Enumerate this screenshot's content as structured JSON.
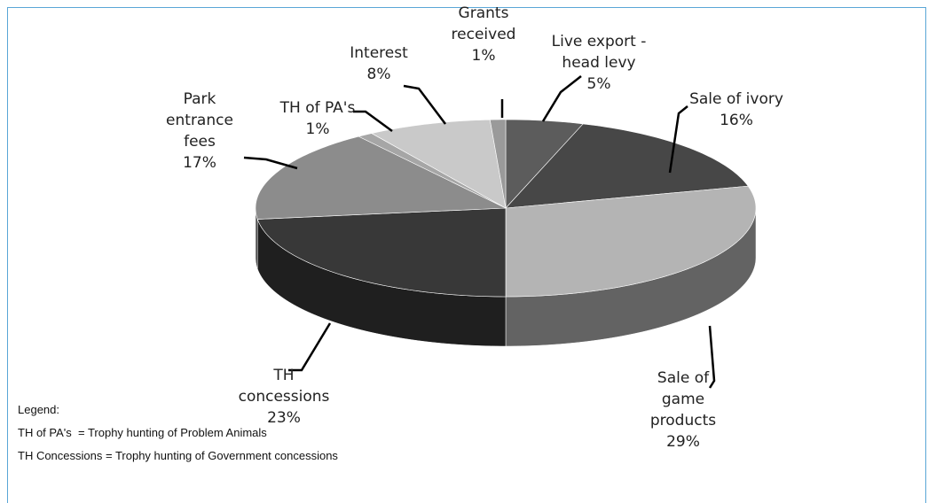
{
  "chart_data": {
    "type": "pie3d",
    "categories": [
      "Live export - head levy",
      "Sale of ivory",
      "Sale of game products",
      "TH concessions",
      "Park entrance fees",
      "TH of PA's",
      "Interest",
      "Grants received"
    ],
    "values": [
      5,
      16,
      29,
      23,
      17,
      1,
      8,
      1
    ],
    "value_labels": [
      "5%",
      "16%",
      "29%",
      "23%",
      "17%",
      "1%",
      "8%",
      "1%"
    ],
    "colors": [
      "#5c5c5c",
      "#474747",
      "#b4b4b4",
      "#383838",
      "#8c8c8c",
      "#a6a6a6",
      "#c9c9c9",
      "#9a9a9a"
    ],
    "legend_title": "Legend:",
    "notes": [
      "TH of PA's  = Trophy hunting of Problem Animals",
      "TH Concessions = Trophy hunting of Government concessions"
    ]
  }
}
